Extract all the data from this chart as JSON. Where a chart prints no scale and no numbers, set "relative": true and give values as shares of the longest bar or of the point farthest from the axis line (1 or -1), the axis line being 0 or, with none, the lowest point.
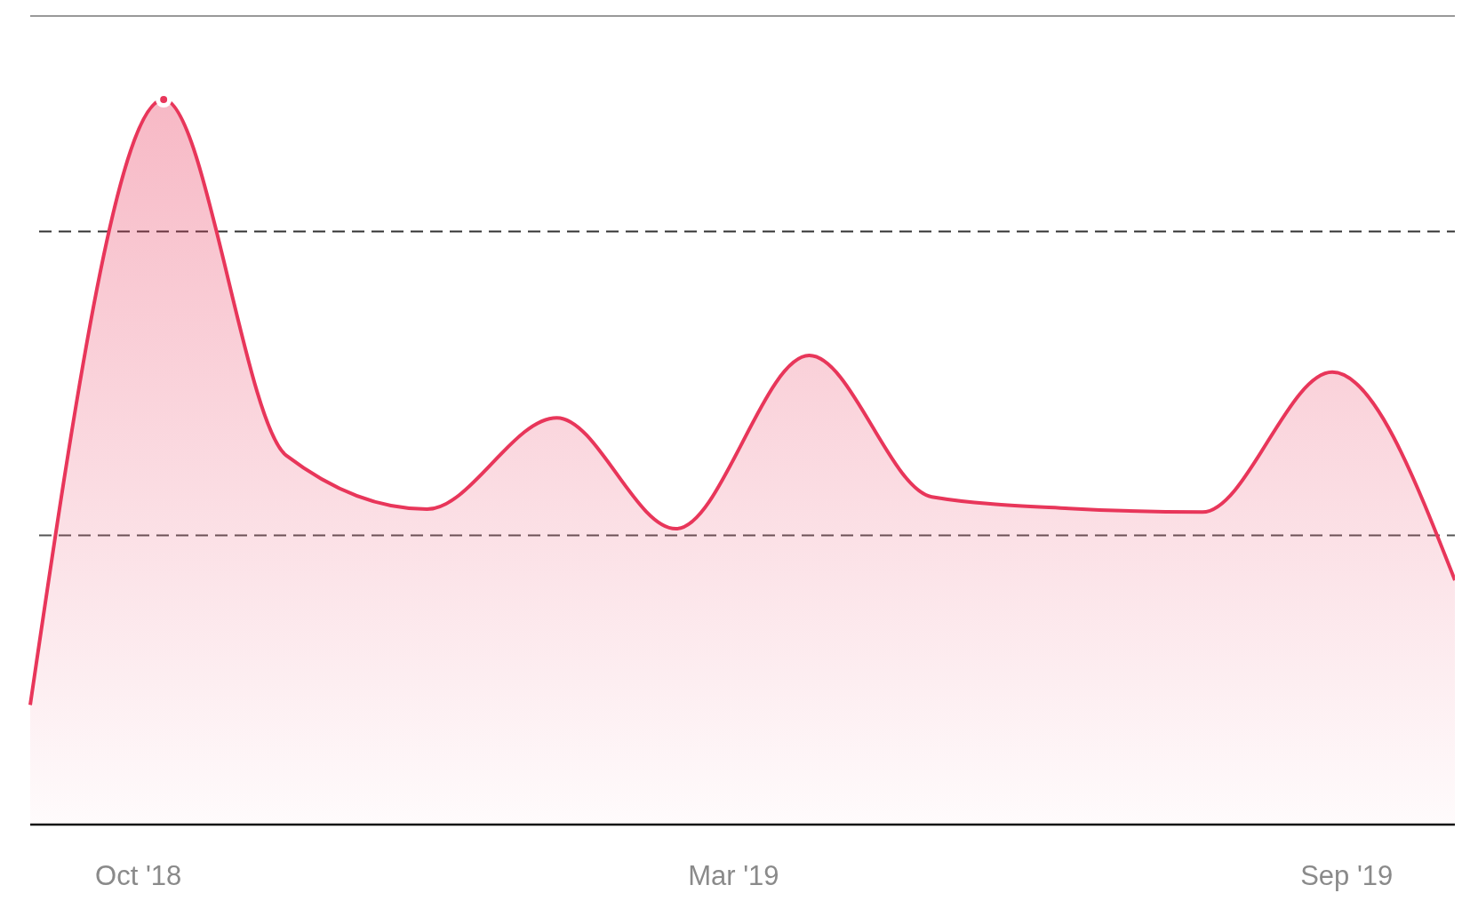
{
  "chart_data": {
    "type": "area",
    "relative": true,
    "xlim": [
      "2018-09-01",
      "2019-10-01"
    ],
    "xticks": [
      {
        "value": "2018-10-01",
        "label": "Oct '18"
      },
      {
        "value": "2019-03-15",
        "label": "Mar '19"
      },
      {
        "value": "2019-09-01",
        "label": "Sep '19"
      }
    ],
    "series": [
      {
        "color": "#e8365a",
        "x": [
          "2018-09-01",
          "2018-10-08",
          "2018-11-11",
          "2018-12-20",
          "2019-01-25",
          "2019-02-27",
          "2019-04-05",
          "2019-05-09",
          "2019-06-16",
          "2019-07-23",
          "2019-08-28",
          "2019-10-01"
        ],
        "values": [
          0.165,
          1.0,
          0.509,
          0.435,
          0.561,
          0.408,
          0.647,
          0.452,
          0.436,
          0.431,
          0.624,
          0.337
        ]
      },
      {
        "type": "scatter",
        "marker": "circle",
        "color": "#e8365a",
        "x": [
          "2018-10-08"
        ],
        "values": [
          1.0
        ]
      }
    ],
    "ref_lines": [
      {
        "axis": "y",
        "value": 0.818,
        "color": "#333333",
        "line_style": "dashed"
      },
      {
        "axis": "y",
        "value": 0.399,
        "color": "#555555",
        "line_style": "dashed"
      }
    ],
    "tick_labels": "x"
  }
}
